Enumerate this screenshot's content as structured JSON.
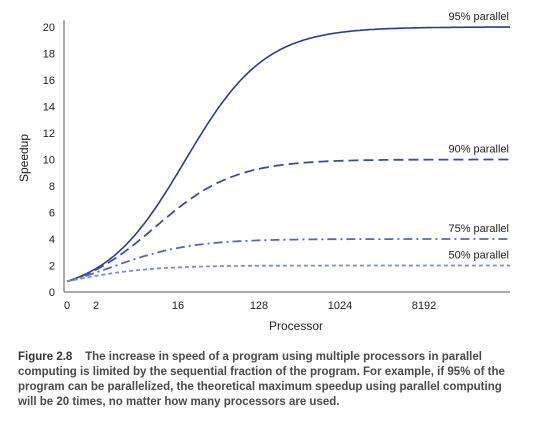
{
  "caption": {
    "figure_label": "Figure 2.8",
    "text": "The increase in speed of a program using multiple processors in parallel computing is limited by the sequential fraction of the program. For example, if 95% of the program can be parallelized, the theoretical maximum speedup using parallel computing will be 20 times, no matter how many processors are used."
  },
  "chart_data": {
    "type": "line",
    "title": "",
    "xlabel": "Processor",
    "ylabel": "Speedup",
    "x_tick_labels": [
      "0",
      "2",
      "16",
      "128",
      "1024",
      "8192"
    ],
    "y_ticks": [
      0,
      2,
      4,
      6,
      8,
      10,
      12,
      14,
      16,
      18,
      20
    ],
    "ylim": [
      0,
      20
    ],
    "x_scale": "log2",
    "grid": false,
    "series": [
      {
        "name": "95% parallel",
        "parallel_fraction": 0.95,
        "max_speedup": 20,
        "style": "solid",
        "color": "#2c3d8f"
      },
      {
        "name": "90% parallel",
        "parallel_fraction": 0.9,
        "max_speedup": 10,
        "style": "dashed",
        "color": "#3a4c9c"
      },
      {
        "name": "75% parallel",
        "parallel_fraction": 0.75,
        "max_speedup": 4,
        "style": "dashdot",
        "color": "#5567b0"
      },
      {
        "name": "50% parallel",
        "parallel_fraction": 0.5,
        "max_speedup": 2,
        "style": "dashed-fine",
        "color": "#7d8cc8"
      }
    ]
  }
}
